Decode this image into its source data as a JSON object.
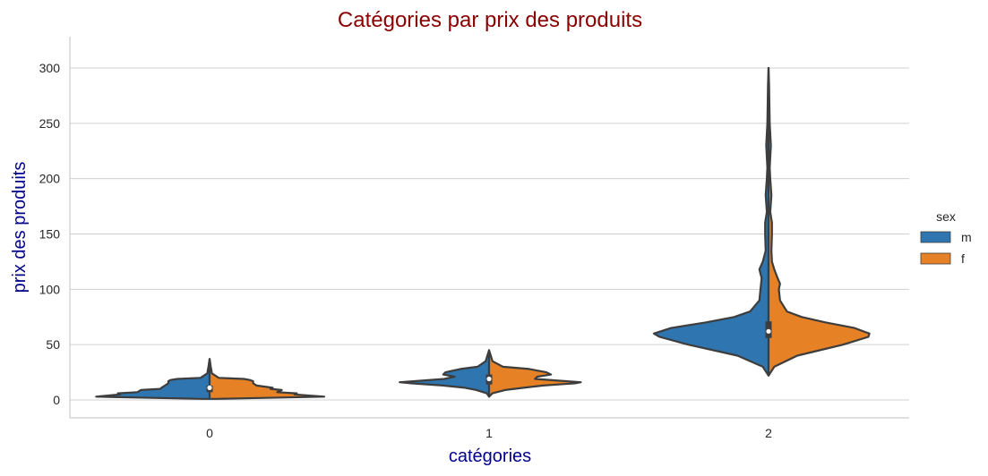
{
  "chart_data": {
    "type": "violin",
    "title": "Catégories par prix des produits",
    "xlabel": "catégories",
    "ylabel": "prix des produits",
    "categories": [
      "0",
      "1",
      "2"
    ],
    "ylim": [
      -16,
      330
    ],
    "yticks": [
      0,
      50,
      100,
      150,
      200,
      250,
      300
    ],
    "grid": "horizontal",
    "split": true,
    "legend": {
      "title": "sex",
      "placement": "center-right",
      "entries": [
        {
          "label": "m",
          "color": "#2f76b0"
        },
        {
          "label": "f",
          "color": "#e68126"
        }
      ]
    },
    "series": [
      {
        "name": "m",
        "color": "#2f76b0",
        "violins": [
          {
            "range": [
              1,
              37
            ],
            "median": 11,
            "q1": 7,
            "q3": 13,
            "profile": [
              [
                1,
                0.06
              ],
              [
                3,
                0.99
              ],
              [
                5,
                0.78
              ],
              [
                6,
                0.8
              ],
              [
                7,
                0.63
              ],
              [
                9,
                0.6
              ],
              [
                10,
                0.43
              ],
              [
                11,
                0.42
              ],
              [
                13,
                0.39
              ],
              [
                15,
                0.36
              ],
              [
                17,
                0.36
              ],
              [
                18,
                0.34
              ],
              [
                19,
                0.28
              ],
              [
                20,
                0.08
              ],
              [
                24,
                0.02
              ],
              [
                30,
                0.01
              ],
              [
                37,
                0.0
              ]
            ]
          },
          {
            "range": [
              3,
              45
            ],
            "median": 19,
            "q1": 14,
            "q3": 23,
            "profile": [
              [
                3,
                0.0
              ],
              [
                6,
                0.02
              ],
              [
                9,
                0.11
              ],
              [
                11,
                0.21
              ],
              [
                13,
                0.4
              ],
              [
                15,
                0.68
              ],
              [
                16,
                0.78
              ],
              [
                17,
                0.65
              ],
              [
                19,
                0.39
              ],
              [
                21,
                0.3
              ],
              [
                23,
                0.4
              ],
              [
                25,
                0.38
              ],
              [
                28,
                0.25
              ],
              [
                30,
                0.1
              ],
              [
                35,
                0.03
              ],
              [
                40,
                0.015
              ],
              [
                45,
                0.0
              ]
            ]
          },
          {
            "range": [
              22,
              300
            ],
            "median": 62,
            "q1": 56,
            "q3": 71,
            "profile": [
              [
                22,
                0.0
              ],
              [
                30,
                0.05
              ],
              [
                40,
                0.27
              ],
              [
                50,
                0.7
              ],
              [
                57,
                0.95
              ],
              [
                60,
                1.0
              ],
              [
                65,
                0.85
              ],
              [
                70,
                0.55
              ],
              [
                75,
                0.3
              ],
              [
                80,
                0.16
              ],
              [
                90,
                0.08
              ],
              [
                100,
                0.07
              ],
              [
                110,
                0.06
              ],
              [
                118,
                0.08
              ],
              [
                125,
                0.05
              ],
              [
                135,
                0.025
              ],
              [
                150,
                0.03
              ],
              [
                160,
                0.03
              ],
              [
                170,
                0.015
              ],
              [
                185,
                0.025
              ],
              [
                200,
                0.015
              ],
              [
                210,
                0.01
              ],
              [
                230,
                0.02
              ],
              [
                250,
                0.01
              ],
              [
                270,
                0.007
              ],
              [
                285,
                0.005
              ],
              [
                300,
                0.0
              ]
            ]
          }
        ]
      },
      {
        "name": "f",
        "color": "#e68126",
        "violins": [
          {
            "range": [
              1,
              37
            ],
            "median": 11,
            "q1": 7,
            "q3": 13,
            "profile": [
              [
                1,
                0.06
              ],
              [
                3,
                1.0
              ],
              [
                5,
                0.74
              ],
              [
                6,
                0.76
              ],
              [
                7,
                0.59
              ],
              [
                9,
                0.63
              ],
              [
                10,
                0.53
              ],
              [
                11,
                0.55
              ],
              [
                13,
                0.41
              ],
              [
                15,
                0.38
              ],
              [
                17,
                0.38
              ],
              [
                18,
                0.35
              ],
              [
                19,
                0.3
              ],
              [
                20,
                0.08
              ],
              [
                24,
                0.02
              ],
              [
                30,
                0.01
              ],
              [
                37,
                0.0
              ]
            ]
          },
          {
            "range": [
              3,
              45
            ],
            "median": 19,
            "q1": 14,
            "q3": 23,
            "profile": [
              [
                3,
                0.0
              ],
              [
                6,
                0.03
              ],
              [
                9,
                0.14
              ],
              [
                11,
                0.3
              ],
              [
                13,
                0.47
              ],
              [
                15,
                0.75
              ],
              [
                16,
                0.8
              ],
              [
                17,
                0.67
              ],
              [
                19,
                0.4
              ],
              [
                21,
                0.42
              ],
              [
                23,
                0.54
              ],
              [
                25,
                0.5
              ],
              [
                28,
                0.35
              ],
              [
                30,
                0.12
              ],
              [
                35,
                0.03
              ],
              [
                40,
                0.015
              ],
              [
                45,
                0.0
              ]
            ]
          },
          {
            "range": [
              22,
              300
            ],
            "median": 62,
            "q1": 56,
            "q3": 71,
            "profile": [
              [
                22,
                0.0
              ],
              [
                30,
                0.05
              ],
              [
                40,
                0.25
              ],
              [
                50,
                0.65
              ],
              [
                57,
                0.87
              ],
              [
                60,
                0.88
              ],
              [
                65,
                0.75
              ],
              [
                70,
                0.5
              ],
              [
                75,
                0.29
              ],
              [
                80,
                0.16
              ],
              [
                90,
                0.1
              ],
              [
                100,
                0.09
              ],
              [
                105,
                0.1
              ],
              [
                110,
                0.08
              ],
              [
                118,
                0.05
              ],
              [
                125,
                0.03
              ],
              [
                135,
                0.025
              ],
              [
                150,
                0.03
              ],
              [
                160,
                0.03
              ],
              [
                170,
                0.015
              ],
              [
                185,
                0.025
              ],
              [
                200,
                0.015
              ],
              [
                210,
                0.01
              ],
              [
                230,
                0.02
              ],
              [
                250,
                0.01
              ],
              [
                270,
                0.007
              ],
              [
                285,
                0.005
              ],
              [
                300,
                0.0
              ]
            ]
          }
        ]
      }
    ]
  }
}
